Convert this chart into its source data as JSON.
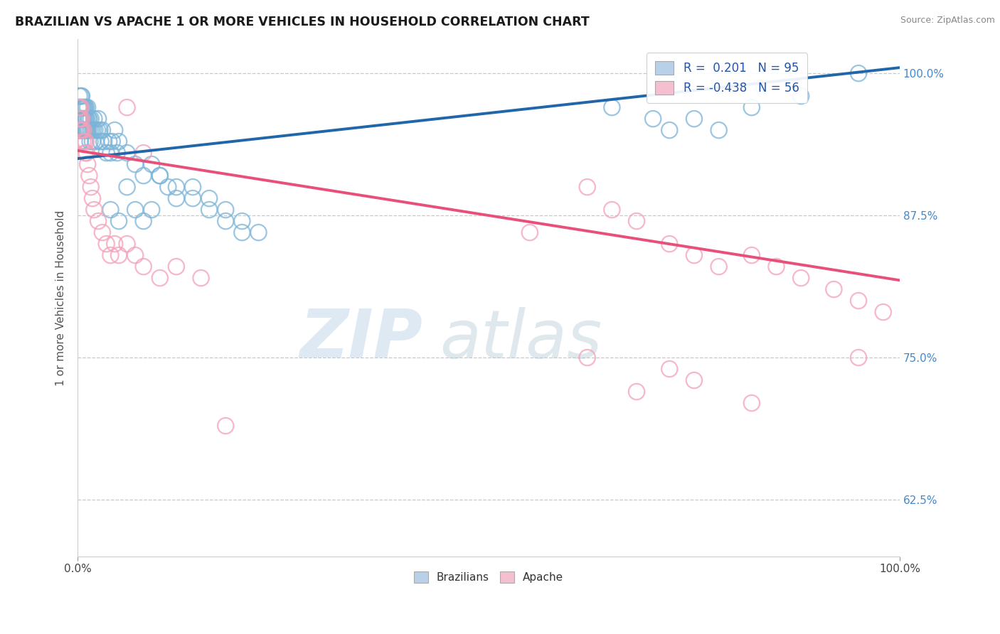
{
  "title": "BRAZILIAN VS APACHE 1 OR MORE VEHICLES IN HOUSEHOLD CORRELATION CHART",
  "source_text": "Source: ZipAtlas.com",
  "ylabel": "1 or more Vehicles in Household",
  "ytick_labels": [
    "62.5%",
    "75.0%",
    "87.5%",
    "100.0%"
  ],
  "ytick_values": [
    0.625,
    0.75,
    0.875,
    1.0
  ],
  "xtick_labels": [
    "0.0%",
    "100.0%"
  ],
  "xtick_values": [
    0.0,
    1.0
  ],
  "bottom_legend": [
    "Brazilians",
    "Apache"
  ],
  "blue_color": "#7ab4d8",
  "pink_color": "#f4a0b8",
  "blue_line_color": "#2266aa",
  "pink_line_color": "#e8507a",
  "watermark_zip": "ZIP",
  "watermark_atlas": "atlas",
  "watermark_color_zip": "#c5d8ea",
  "watermark_color_atlas": "#b8ccd8",
  "legend_blue_label": "R =  0.201   N = 95",
  "legend_pink_label": "R = -0.438   N = 56",
  "legend_blue_fill": "#b8d0e8",
  "legend_pink_fill": "#f4c0d0",
  "blue_line_y0": 0.925,
  "blue_line_y1": 1.005,
  "pink_line_y0": 0.932,
  "pink_line_y1": 0.818,
  "xlim": [
    0.0,
    1.0
  ],
  "ylim": [
    0.575,
    1.03
  ],
  "blue_scatter_x": [
    0.001,
    0.001,
    0.001,
    0.002,
    0.002,
    0.002,
    0.002,
    0.003,
    0.003,
    0.003,
    0.003,
    0.004,
    0.004,
    0.004,
    0.004,
    0.005,
    0.005,
    0.005,
    0.005,
    0.006,
    0.006,
    0.006,
    0.007,
    0.007,
    0.007,
    0.008,
    0.008,
    0.008,
    0.009,
    0.009,
    0.009,
    0.01,
    0.01,
    0.01,
    0.011,
    0.011,
    0.012,
    0.012,
    0.013,
    0.013,
    0.014,
    0.015,
    0.015,
    0.016,
    0.017,
    0.018,
    0.019,
    0.02,
    0.021,
    0.022,
    0.024,
    0.025,
    0.027,
    0.028,
    0.03,
    0.032,
    0.035,
    0.038,
    0.04,
    0.042,
    0.045,
    0.048,
    0.05,
    0.06,
    0.07,
    0.08,
    0.09,
    0.1,
    0.11,
    0.12,
    0.14,
    0.16,
    0.18,
    0.2,
    0.22,
    0.04,
    0.05,
    0.06,
    0.07,
    0.08,
    0.09,
    0.1,
    0.12,
    0.14,
    0.16,
    0.18,
    0.2,
    0.65,
    0.7,
    0.72,
    0.75,
    0.78,
    0.82,
    0.88,
    0.95
  ],
  "blue_scatter_y": [
    0.97,
    0.96,
    0.95,
    0.98,
    0.97,
    0.96,
    0.95,
    0.97,
    0.96,
    0.95,
    0.94,
    0.98,
    0.97,
    0.96,
    0.95,
    0.98,
    0.97,
    0.96,
    0.95,
    0.97,
    0.96,
    0.95,
    0.97,
    0.96,
    0.95,
    0.97,
    0.96,
    0.95,
    0.97,
    0.96,
    0.95,
    0.97,
    0.96,
    0.95,
    0.96,
    0.95,
    0.97,
    0.95,
    0.96,
    0.95,
    0.96,
    0.95,
    0.94,
    0.96,
    0.95,
    0.94,
    0.95,
    0.96,
    0.95,
    0.94,
    0.95,
    0.96,
    0.95,
    0.94,
    0.95,
    0.94,
    0.93,
    0.94,
    0.93,
    0.94,
    0.95,
    0.93,
    0.94,
    0.93,
    0.92,
    0.91,
    0.92,
    0.91,
    0.9,
    0.89,
    0.9,
    0.89,
    0.88,
    0.87,
    0.86,
    0.88,
    0.87,
    0.9,
    0.88,
    0.87,
    0.88,
    0.91,
    0.9,
    0.89,
    0.88,
    0.87,
    0.86,
    0.97,
    0.96,
    0.95,
    0.96,
    0.95,
    0.97,
    0.98,
    1.0
  ],
  "pink_scatter_x": [
    0.001,
    0.001,
    0.002,
    0.002,
    0.002,
    0.003,
    0.003,
    0.004,
    0.004,
    0.005,
    0.005,
    0.006,
    0.007,
    0.008,
    0.009,
    0.01,
    0.011,
    0.012,
    0.014,
    0.016,
    0.018,
    0.02,
    0.025,
    0.03,
    0.035,
    0.04,
    0.045,
    0.05,
    0.06,
    0.07,
    0.08,
    0.1,
    0.12,
    0.15,
    0.06,
    0.08,
    0.18,
    0.55,
    0.62,
    0.65,
    0.68,
    0.72,
    0.75,
    0.78,
    0.82,
    0.85,
    0.88,
    0.92,
    0.95,
    0.98,
    0.62,
    0.68,
    0.72,
    0.75,
    0.82,
    0.95
  ],
  "pink_scatter_y": [
    0.97,
    0.96,
    0.97,
    0.96,
    0.95,
    0.96,
    0.95,
    0.97,
    0.95,
    0.96,
    0.95,
    0.94,
    0.95,
    0.94,
    0.93,
    0.94,
    0.93,
    0.92,
    0.91,
    0.9,
    0.89,
    0.88,
    0.87,
    0.86,
    0.85,
    0.84,
    0.85,
    0.84,
    0.85,
    0.84,
    0.83,
    0.82,
    0.83,
    0.82,
    0.97,
    0.93,
    0.69,
    0.86,
    0.9,
    0.88,
    0.87,
    0.85,
    0.84,
    0.83,
    0.84,
    0.83,
    0.82,
    0.81,
    0.8,
    0.79,
    0.75,
    0.72,
    0.74,
    0.73,
    0.71,
    0.75
  ]
}
